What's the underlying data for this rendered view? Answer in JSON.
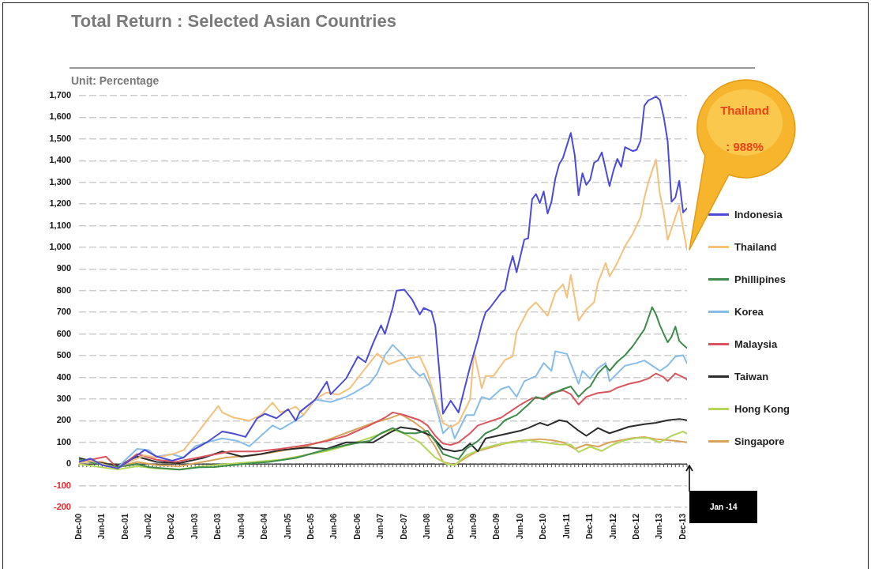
{
  "chart_data": {
    "type": "line",
    "title": "Total Return : Selected Asian Countries",
    "subtitle": "Unit: Percentage",
    "xlim": [
      "2000-12",
      "2014-01"
    ],
    "xticks": [
      {
        "value": "2000-12",
        "label": "Dec-00"
      },
      {
        "value": "2001-06",
        "label": "Jun-01"
      },
      {
        "value": "2001-12",
        "label": "Dec-01"
      },
      {
        "value": "2002-06",
        "label": "Jun-02"
      },
      {
        "value": "2002-12",
        "label": "Dec-02"
      },
      {
        "value": "2003-06",
        "label": "Jun-03"
      },
      {
        "value": "2003-12",
        "label": "Dec-03"
      },
      {
        "value": "2004-06",
        "label": "Jun-04"
      },
      {
        "value": "2004-12",
        "label": "Dec-04"
      },
      {
        "value": "2005-06",
        "label": "Jun-05"
      },
      {
        "value": "2005-12",
        "label": "Dec-05"
      },
      {
        "value": "2006-06",
        "label": "Jun-06"
      },
      {
        "value": "2006-12",
        "label": "Dec-06"
      },
      {
        "value": "2007-06",
        "label": "Jun-07"
      },
      {
        "value": "2007-12",
        "label": "Dec-07"
      },
      {
        "value": "2008-06",
        "label": "Jun-08"
      },
      {
        "value": "2008-12",
        "label": "Dec-08"
      },
      {
        "value": "2009-06",
        "label": "Jun-09"
      },
      {
        "value": "2009-12",
        "label": "Dec-09"
      },
      {
        "value": "2010-06",
        "label": "Jun-10"
      },
      {
        "value": "2010-12",
        "label": "Dec-10"
      },
      {
        "value": "2011-06",
        "label": "Jun-11"
      },
      {
        "value": "2011-12",
        "label": "Dec-11"
      },
      {
        "value": "2012-06",
        "label": "Jun-12"
      },
      {
        "value": "2012-12",
        "label": "Dec-12"
      },
      {
        "value": "2013-06",
        "label": "Jun-13"
      },
      {
        "value": "2013-12",
        "label": "Dec-13"
      }
    ],
    "ylim": [
      -200,
      1700
    ],
    "yticks": [
      -200,
      -100,
      0,
      100,
      200,
      300,
      400,
      500,
      600,
      700,
      800,
      900,
      {
        "value": 1000,
        "label": "1,000"
      },
      {
        "value": 1100,
        "label": "1,100"
      },
      {
        "value": 1200,
        "label": "1,200"
      },
      {
        "value": 1300,
        "label": "1,300"
      },
      {
        "value": 1400,
        "label": "1,400"
      },
      {
        "value": 1500,
        "label": "1,500"
      },
      {
        "value": 1600,
        "label": "1,600"
      },
      {
        "value": 1700,
        "label": "1,700"
      }
    ],
    "grid": "y",
    "legend": "right",
    "series": [
      {
        "name": "Indonesia",
        "color": "#4b4bd6",
        "x": [
          "2000-12",
          "2001-03",
          "2001-06",
          "2001-10",
          "2002-01",
          "2002-05",
          "2002-08",
          "2002-12",
          "2003-03",
          "2003-05",
          "2003-09",
          "2004-01",
          "2004-04",
          "2004-07",
          "2004-10",
          "2004-12",
          "2005-03",
          "2005-06",
          "2005-08",
          "2005-09",
          "2006-01",
          "2006-04",
          "2006-05",
          "2006-09",
          "2006-12",
          "2007-02",
          "2007-04",
          "2007-06",
          "2007-07",
          "2007-09",
          "2007-10",
          "2007-12",
          "2008-02",
          "2008-04",
          "2008-05",
          "2008-07",
          "2008-08",
          "2008-10",
          "2008-12",
          "2009-02",
          "2009-05",
          "2009-07",
          "2009-08",
          "2009-09",
          "2009-10",
          "2010-01",
          "2010-02",
          "2010-03",
          "2010-04",
          "2010-05",
          "2010-07",
          "2010-08",
          "2010-09",
          "2010-10",
          "2010-11",
          "2010-12",
          "2011-01",
          "2011-02",
          "2011-03",
          "2011-04",
          "2011-05",
          "2011-07",
          "2011-08",
          "2011-09",
          "2011-10",
          "2011-11",
          "2011-12",
          "2012-01",
          "2012-02",
          "2012-03",
          "2012-05",
          "2012-06",
          "2012-07",
          "2012-08",
          "2012-09",
          "2012-11",
          "2012-12",
          "2013-01",
          "2013-02",
          "2013-03",
          "2013-05",
          "2013-06",
          "2013-07",
          "2013-08",
          "2013-09",
          "2013-10",
          "2013-11",
          "2013-12",
          "2014-01"
        ],
        "values": [
          10,
          25,
          -5,
          -20,
          15,
          65,
          35,
          15,
          30,
          60,
          100,
          150,
          140,
          125,
          211,
          232,
          211,
          253,
          200,
          240,
          297,
          380,
          322,
          395,
          495,
          470,
          560,
          640,
          600,
          720,
          800,
          805,
          760,
          690,
          720,
          705,
          640,
          232,
          292,
          238,
          450,
          575,
          645,
          700,
          718,
          790,
          805,
          895,
          960,
          885,
          1036,
          1042,
          1222,
          1246,
          1204,
          1258,
          1156,
          1210,
          1318,
          1384,
          1414,
          1528,
          1426,
          1240,
          1342,
          1288,
          1312,
          1390,
          1402,
          1438,
          1282,
          1354,
          1408,
          1372,
          1462,
          1444,
          1450,
          1492,
          1654,
          1678,
          1695,
          1680,
          1600,
          1490,
          1210,
          1230,
          1307,
          1161,
          1180
        ]
      },
      {
        "name": "Thailand",
        "color": "#f5c07a",
        "x": [
          "2000-12",
          "2001-03",
          "2001-06",
          "2001-10",
          "2002-01",
          "2002-05",
          "2002-08",
          "2002-12",
          "2003-03",
          "2003-06",
          "2003-09",
          "2003-12",
          "2004-01",
          "2004-04",
          "2004-08",
          "2004-11",
          "2005-02",
          "2005-04",
          "2005-06",
          "2005-08",
          "2005-10",
          "2006-01",
          "2006-04",
          "2006-07",
          "2006-10",
          "2007-01",
          "2007-05",
          "2007-08",
          "2007-11",
          "2008-02",
          "2008-04",
          "2008-06",
          "2008-08",
          "2008-10",
          "2008-12",
          "2009-02",
          "2009-05",
          "2009-06",
          "2009-08",
          "2009-09",
          "2009-11",
          "2010-02",
          "2010-04",
          "2010-05",
          "2010-08",
          "2010-10",
          "2011-01",
          "2011-03",
          "2011-05",
          "2011-06",
          "2011-07",
          "2011-09",
          "2011-11",
          "2012-01",
          "2012-02",
          "2012-04",
          "2012-05",
          "2012-07",
          "2012-09",
          "2012-11",
          "2013-01",
          "2013-02",
          "2013-03",
          "2013-05",
          "2013-06",
          "2013-07",
          "2013-08",
          "2013-10",
          "2013-11",
          "2013-12",
          "2014-01"
        ],
        "values": [
          5,
          15,
          0,
          -20,
          10,
          40,
          30,
          45,
          64,
          130,
          200,
          268,
          238,
          214,
          200,
          226,
          283,
          238,
          250,
          264,
          226,
          300,
          330,
          320,
          350,
          420,
          510,
          460,
          480,
          490,
          496,
          420,
          300,
          190,
          170,
          190,
          298,
          517,
          350,
          406,
          406,
          480,
          496,
          609,
          713,
          746,
          684,
          790,
          830,
          768,
          873,
          662,
          713,
          746,
          837,
          928,
          866,
          928,
          1005,
          1063,
          1139,
          1230,
          1300,
          1405,
          1245,
          1160,
          1034,
          1139,
          1194,
          1085,
          988
        ]
      },
      {
        "name": "Phillipines",
        "color": "#3d8c4a",
        "x": [
          "2000-12",
          "2001-04",
          "2001-10",
          "2002-03",
          "2002-06",
          "2002-10",
          "2003-02",
          "2003-07",
          "2003-11",
          "2004-06",
          "2005-01",
          "2005-08",
          "2006-02",
          "2006-09",
          "2007-03",
          "2007-06",
          "2007-09",
          "2007-12",
          "2008-03",
          "2008-06",
          "2008-08",
          "2008-10",
          "2008-12",
          "2009-02",
          "2009-04",
          "2009-07",
          "2009-09",
          "2009-12",
          "2010-02",
          "2010-05",
          "2010-08",
          "2010-10",
          "2010-12",
          "2011-02",
          "2011-05",
          "2011-07",
          "2011-09",
          "2011-11",
          "2011-12",
          "2012-02",
          "2012-04",
          "2012-05",
          "2012-07",
          "2012-09",
          "2012-11",
          "2013-02",
          "2013-04",
          "2013-05",
          "2013-06",
          "2013-07",
          "2013-08",
          "2013-09",
          "2013-10",
          "2013-11",
          "2013-12",
          "2014-01"
        ],
        "values": [
          22,
          5,
          -14,
          0,
          -14,
          -20,
          -26,
          -15,
          -14,
          0,
          10,
          28,
          58,
          88,
          106,
          142,
          166,
          142,
          142,
          154,
          106,
          46,
          34,
          22,
          70,
          106,
          142,
          166,
          202,
          226,
          274,
          310,
          298,
          322,
          346,
          358,
          310,
          346,
          358,
          418,
          454,
          430,
          472,
          502,
          544,
          622,
          724,
          690,
          640,
          600,
          562,
          586,
          634,
          568,
          550,
          535
        ]
      },
      {
        "name": "Korea",
        "color": "#86bde8",
        "x": [
          "2000-12",
          "2001-03",
          "2001-06",
          "2001-10",
          "2002-03",
          "2002-06",
          "2002-08",
          "2002-12",
          "2003-03",
          "2003-06",
          "2003-09",
          "2004-01",
          "2004-05",
          "2004-08",
          "2004-11",
          "2005-02",
          "2005-04",
          "2005-08",
          "2005-10",
          "2006-01",
          "2006-05",
          "2006-09",
          "2006-11",
          "2007-03",
          "2007-05",
          "2007-07",
          "2007-09",
          "2007-12",
          "2008-02",
          "2008-04",
          "2008-05",
          "2008-07",
          "2008-09",
          "2008-10",
          "2008-12",
          "2009-01",
          "2009-04",
          "2009-06",
          "2009-08",
          "2009-10",
          "2010-01",
          "2010-03",
          "2010-05",
          "2010-07",
          "2010-10",
          "2010-12",
          "2011-02",
          "2011-03",
          "2011-06",
          "2011-08",
          "2011-09",
          "2011-10",
          "2011-12",
          "2012-02",
          "2012-04",
          "2012-05",
          "2012-07",
          "2012-09",
          "2012-12",
          "2013-02",
          "2013-04",
          "2013-06",
          "2013-08",
          "2013-10",
          "2013-12",
          "2014-01"
        ],
        "values": [
          15,
          10,
          0,
          -15,
          70,
          64,
          34,
          45,
          30,
          82,
          100,
          118,
          106,
          82,
          130,
          178,
          160,
          202,
          226,
          298,
          286,
          310,
          328,
          370,
          418,
          502,
          550,
          496,
          442,
          406,
          418,
          346,
          214,
          142,
          178,
          118,
          226,
          226,
          310,
          298,
          346,
          358,
          310,
          382,
          406,
          466,
          430,
          520,
          508,
          418,
          370,
          430,
          394,
          442,
          466,
          382,
          418,
          454,
          466,
          478,
          454,
          430,
          454,
          496,
          502,
          465
        ]
      },
      {
        "name": "Malaysia",
        "color": "#d9545c",
        "x": [
          "2000-12",
          "2001-03",
          "2001-07",
          "2001-10",
          "2002-03",
          "2002-08",
          "2003-01",
          "2003-08",
          "2004-03",
          "2004-10",
          "2005-04",
          "2005-11",
          "2006-04",
          "2006-09",
          "2007-03",
          "2007-07",
          "2007-09",
          "2007-12",
          "2008-04",
          "2008-06",
          "2008-08",
          "2008-10",
          "2008-12",
          "2009-02",
          "2009-05",
          "2009-07",
          "2009-10",
          "2010-01",
          "2010-04",
          "2010-06",
          "2010-09",
          "2010-12",
          "2011-02",
          "2011-05",
          "2011-07",
          "2011-09",
          "2011-11",
          "2012-02",
          "2012-05",
          "2012-07",
          "2012-10",
          "2013-01",
          "2013-03",
          "2013-05",
          "2013-07",
          "2013-08",
          "2013-10",
          "2013-12",
          "2014-01"
        ],
        "values": [
          10,
          20,
          34,
          -20,
          46,
          20,
          10,
          34,
          58,
          58,
          70,
          88,
          106,
          130,
          178,
          214,
          238,
          226,
          202,
          178,
          130,
          94,
          88,
          100,
          142,
          178,
          196,
          214,
          250,
          274,
          304,
          304,
          328,
          340,
          322,
          274,
          310,
          328,
          334,
          352,
          370,
          382,
          394,
          418,
          400,
          382,
          418,
          400,
          390
        ]
      },
      {
        "name": "Taiwan",
        "color": "#2b2b2b",
        "x": [
          "2000-12",
          "2001-04",
          "2001-10",
          "2002-03",
          "2002-08",
          "2003-02",
          "2003-08",
          "2004-01",
          "2004-06",
          "2004-11",
          "2005-04",
          "2005-11",
          "2006-04",
          "2006-09",
          "2007-04",
          "2007-08",
          "2007-11",
          "2008-03",
          "2008-07",
          "2008-10",
          "2009-01",
          "2009-03",
          "2009-05",
          "2009-07",
          "2009-09",
          "2009-12",
          "2010-03",
          "2010-06",
          "2010-08",
          "2010-11",
          "2011-01",
          "2011-04",
          "2011-06",
          "2011-09",
          "2011-11",
          "2012-02",
          "2012-05",
          "2012-07",
          "2012-10",
          "2013-02",
          "2013-05",
          "2013-08",
          "2013-11",
          "2014-01"
        ],
        "values": [
          28,
          10,
          -8,
          34,
          10,
          4,
          28,
          58,
          34,
          46,
          64,
          76,
          70,
          100,
          100,
          142,
          170,
          160,
          130,
          70,
          58,
          64,
          94,
          58,
          118,
          130,
          142,
          154,
          166,
          190,
          178,
          202,
          196,
          154,
          130,
          166,
          142,
          154,
          172,
          184,
          190,
          202,
          208,
          202
        ]
      },
      {
        "name": "Hong Kong",
        "color": "#b5d65a",
        "x": [
          "2000-12",
          "2001-04",
          "2001-10",
          "2002-03",
          "2002-08",
          "2003-02",
          "2003-08",
          "2004-02",
          "2004-09",
          "2005-04",
          "2005-10",
          "2006-04",
          "2006-10",
          "2007-03",
          "2007-06",
          "2007-09",
          "2007-12",
          "2008-04",
          "2008-08",
          "2008-11",
          "2009-01",
          "2009-04",
          "2009-08",
          "2009-12",
          "2010-04",
          "2010-08",
          "2010-12",
          "2011-04",
          "2011-07",
          "2011-09",
          "2011-12",
          "2012-03",
          "2012-06",
          "2012-09",
          "2012-12",
          "2013-03",
          "2013-06",
          "2013-09",
          "2013-12",
          "2014-01"
        ],
        "values": [
          0,
          -10,
          -25,
          -10,
          -20,
          -25,
          -10,
          0,
          10,
          20,
          40,
          60,
          90,
          120,
          140,
          160,
          140,
          100,
          30,
          0,
          -5,
          40,
          70,
          90,
          100,
          110,
          100,
          90,
          90,
          55,
          80,
          60,
          90,
          110,
          120,
          120,
          100,
          130,
          150,
          140
        ]
      },
      {
        "name": "Singapore",
        "color": "#d9a45a",
        "x": [
          "2000-12",
          "2001-06",
          "2001-10",
          "2002-03",
          "2002-08",
          "2003-02",
          "2003-08",
          "2004-02",
          "2004-09",
          "2005-04",
          "2005-10",
          "2006-04",
          "2006-10",
          "2007-04",
          "2007-08",
          "2007-11",
          "2008-02",
          "2008-05",
          "2008-08",
          "2008-10",
          "2009-01",
          "2009-04",
          "2009-07",
          "2009-11",
          "2010-03",
          "2010-07",
          "2010-11",
          "2011-02",
          "2011-05",
          "2011-08",
          "2011-11",
          "2012-02",
          "2012-05",
          "2012-08",
          "2012-11",
          "2013-02",
          "2013-05",
          "2013-08",
          "2013-11",
          "2014-01"
        ],
        "values": [
          10,
          10,
          -15,
          10,
          -5,
          -10,
          10,
          30,
          40,
          60,
          80,
          110,
          150,
          190,
          210,
          230,
          200,
          160,
          80,
          10,
          -5,
          30,
          60,
          80,
          100,
          110,
          115,
          110,
          100,
          70,
          90,
          80,
          100,
          110,
          120,
          125,
          115,
          110,
          105,
          100
        ]
      }
    ],
    "annotations": [
      "Thailand : 988%",
      "Jan -14"
    ]
  }
}
